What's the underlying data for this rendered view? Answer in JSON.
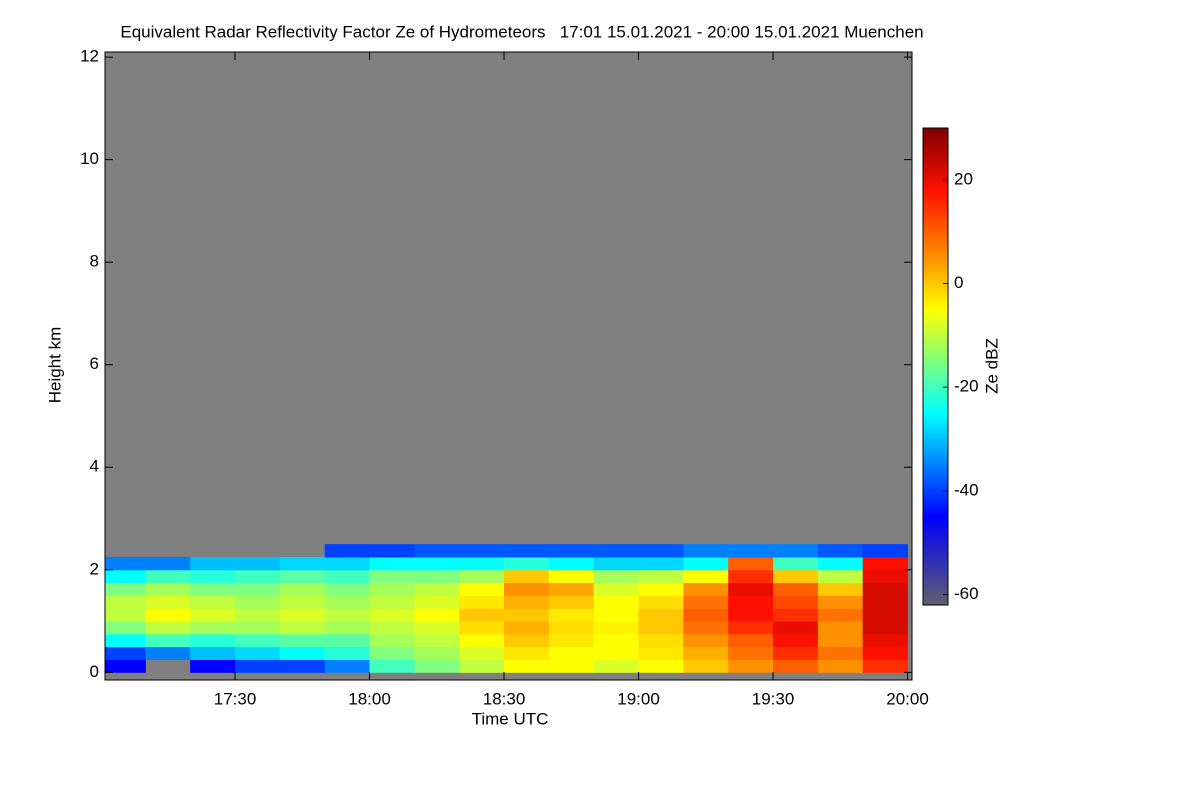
{
  "chart_data": {
    "type": "heatmap",
    "title": "Equivalent Radar Reflectivity Factor Ze of Hydrometeors   17:01 15.01.2021 - 20:00 15.01.2021 Muenchen",
    "xlabel": "Time UTC",
    "ylabel": "Height km",
    "zlabel": "Ze dBZ",
    "xlim": [
      1021,
      1201
    ],
    "xticks": [
      {
        "value": 1050,
        "label": "17:30"
      },
      {
        "value": 1080,
        "label": "18:00"
      },
      {
        "value": 1110,
        "label": "18:30"
      },
      {
        "value": 1140,
        "label": "19:00"
      },
      {
        "value": 1170,
        "label": "19:30"
      },
      {
        "value": 1200,
        "label": "20:00"
      }
    ],
    "ylim": [
      -0.15,
      12.1
    ],
    "yticks": [
      0,
      2,
      4,
      6,
      8,
      10,
      12
    ],
    "zlim": [
      -62,
      30
    ],
    "zticks": [
      -60,
      -40,
      -20,
      0,
      20
    ],
    "background": "#808080",
    "colormap": [
      "#60606e",
      "#0000ff",
      "#00ffff",
      "#ffff00",
      "#ff9000",
      "#ff1000",
      "#800000"
    ],
    "colormap_stops": [
      -62,
      -45,
      -25,
      -5,
      5,
      18,
      30
    ],
    "xbins": [
      1021,
      1030,
      1040,
      1050,
      1060,
      1070,
      1080,
      1090,
      1100,
      1110,
      1120,
      1130,
      1140,
      1150,
      1160,
      1170,
      1180,
      1190,
      1200
    ],
    "ybins": [
      0,
      0.25,
      0.5,
      0.75,
      1.0,
      1.25,
      1.5,
      1.75,
      2.0,
      2.25,
      2.5
    ],
    "z": [
      [
        -45,
        null,
        -45,
        -40,
        -40,
        -35,
        -20,
        -15,
        -10,
        -5,
        -5,
        -8,
        -5,
        0,
        5,
        10,
        5,
        15
      ],
      [
        -40,
        -35,
        -30,
        -28,
        -25,
        -22,
        -15,
        -12,
        -8,
        -3,
        -5,
        -5,
        -3,
        2,
        8,
        15,
        8,
        18
      ],
      [
        -25,
        -20,
        -22,
        -20,
        -18,
        -18,
        -12,
        -10,
        -5,
        0,
        -3,
        -5,
        -2,
        5,
        10,
        18,
        5,
        20
      ],
      [
        -15,
        -10,
        -12,
        -12,
        -10,
        -12,
        -10,
        -8,
        -2,
        2,
        -2,
        -4,
        0,
        8,
        15,
        20,
        5,
        22
      ],
      [
        -10,
        -5,
        -8,
        -10,
        -8,
        -10,
        -8,
        -5,
        0,
        0,
        -3,
        -5,
        0,
        10,
        18,
        15,
        8,
        22
      ],
      [
        -10,
        -8,
        -10,
        -12,
        -10,
        -12,
        -10,
        -8,
        -3,
        2,
        0,
        -5,
        -2,
        8,
        18,
        12,
        5,
        22
      ],
      [
        -15,
        -12,
        -15,
        -15,
        -12,
        -15,
        -12,
        -10,
        -5,
        5,
        3,
        -8,
        -5,
        5,
        20,
        10,
        0,
        22
      ],
      [
        -25,
        -20,
        -22,
        -20,
        -18,
        -20,
        -15,
        -15,
        -12,
        0,
        -5,
        -12,
        -10,
        -5,
        15,
        0,
        -10,
        20
      ],
      [
        -35,
        -35,
        -30,
        -30,
        -28,
        -28,
        -25,
        -25,
        -25,
        -22,
        -25,
        -28,
        -28,
        -25,
        10,
        -20,
        -25,
        18
      ],
      [
        null,
        null,
        null,
        null,
        null,
        -40,
        -40,
        -38,
        -38,
        -38,
        -38,
        -38,
        -38,
        -35,
        -35,
        -35,
        -38,
        -40
      ]
    ]
  }
}
